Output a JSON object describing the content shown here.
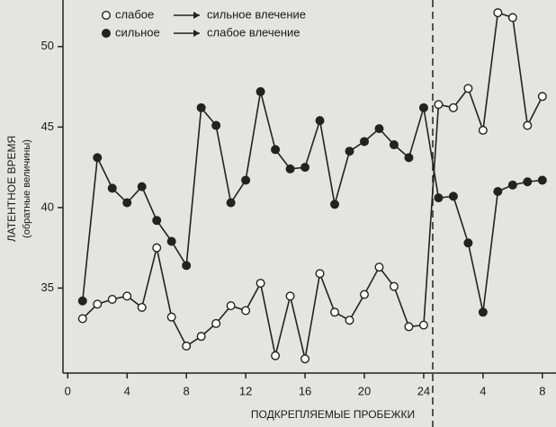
{
  "chart_data": {
    "type": "line",
    "y_label": "ЛАТЕНТНОЕ ВРЕМЯ",
    "y_sublabel": "(обратные величины)",
    "x_label": "ПОДКРЕПЛЯЕМЫЕ ПРОБЕЖКИ",
    "x": [
      1,
      2,
      3,
      4,
      5,
      6,
      7,
      8,
      9,
      10,
      11,
      12,
      13,
      14,
      15,
      16,
      17,
      18,
      19,
      20,
      21,
      22,
      23,
      24,
      25,
      26,
      27,
      28,
      29,
      30,
      31,
      32
    ],
    "series": [
      {
        "name": "слабое",
        "legend_to": "сильное влечение",
        "marker": "open",
        "color": "#222222",
        "values": [
          33.1,
          34.0,
          34.3,
          34.5,
          33.8,
          37.5,
          33.2,
          31.4,
          32.0,
          32.8,
          33.9,
          33.6,
          35.3,
          30.8,
          34.5,
          30.6,
          35.9,
          33.5,
          33.0,
          34.6,
          36.3,
          35.1,
          32.6,
          32.7,
          46.4,
          46.2,
          47.4,
          44.8,
          52.1,
          51.8,
          45.1,
          46.9
        ]
      },
      {
        "name": "сильное",
        "legend_to": "слабое влечение",
        "marker": "filled",
        "color": "#222222",
        "values": [
          34.2,
          43.1,
          41.2,
          40.3,
          41.3,
          39.2,
          37.9,
          36.4,
          46.2,
          45.1,
          40.3,
          41.7,
          47.2,
          43.6,
          42.4,
          42.5,
          45.4,
          40.2,
          43.5,
          44.1,
          44.9,
          43.9,
          43.1,
          46.2,
          40.6,
          40.7,
          37.8,
          33.5,
          41.0,
          41.4,
          41.6,
          41.7
        ]
      }
    ],
    "xlim": [
      -0.2,
      32.8
    ],
    "xticks": [
      0,
      4,
      8,
      12,
      16,
      20,
      24,
      {
        "value": 28,
        "label": "4"
      },
      {
        "value": 32,
        "label": "8"
      }
    ],
    "ylim": [
      30,
      52.5
    ],
    "yticks": [
      35,
      40,
      45,
      50
    ]
  }
}
